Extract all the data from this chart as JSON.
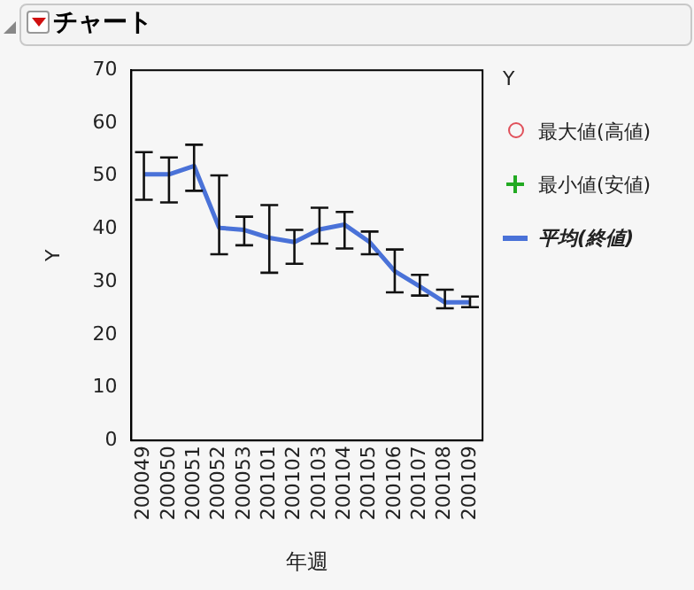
{
  "chart_data": {
    "type": "line",
    "title": "チャート",
    "xlabel": "年週",
    "ylabel": "Y",
    "legend_title": "Y",
    "legend": "right",
    "grid": false,
    "categories": [
      "200049",
      "200050",
      "200051",
      "200052",
      "200053",
      "200101",
      "200102",
      "200103",
      "200104",
      "200105",
      "200106",
      "200107",
      "200108",
      "200109"
    ],
    "ylim": [
      0,
      70
    ],
    "yticks": [
      0,
      10,
      20,
      30,
      40,
      50,
      60,
      70
    ],
    "series": [
      {
        "name": "最大値(高値)",
        "type": "scatter",
        "marker": "circle",
        "color": "#e0505a",
        "values": [
          null,
          null,
          null,
          null,
          null,
          null,
          null,
          null,
          null,
          null,
          null,
          null,
          null,
          null
        ]
      },
      {
        "name": "最小値(安値)",
        "type": "scatter",
        "marker": "cross",
        "color": "#22aa22",
        "values": [
          null,
          null,
          null,
          null,
          null,
          null,
          null,
          null,
          null,
          null,
          null,
          null,
          null,
          null
        ]
      },
      {
        "name": "平均(終値)",
        "type": "line",
        "marker": "none",
        "color": "#4a72d8",
        "values": [
          50.3,
          50.3,
          51.9,
          40.2,
          39.8,
          38.3,
          37.5,
          39.9,
          40.8,
          37.5,
          32,
          29.1,
          26.1,
          26.1
        ],
        "errors": [
          [
            45.5,
            54.5
          ],
          [
            45,
            53.5
          ],
          [
            47.2,
            55.9
          ],
          [
            35.2,
            50.1
          ],
          [
            36.9,
            42.3
          ],
          [
            31.7,
            44.5
          ],
          [
            33.4,
            39.8
          ],
          [
            37.2,
            44
          ],
          [
            36.3,
            43.2
          ],
          [
            35.2,
            39.5
          ],
          [
            28,
            36.1
          ],
          [
            27.4,
            31.3
          ],
          [
            25,
            28.5
          ],
          [
            25.2,
            27.2
          ]
        ]
      }
    ]
  }
}
